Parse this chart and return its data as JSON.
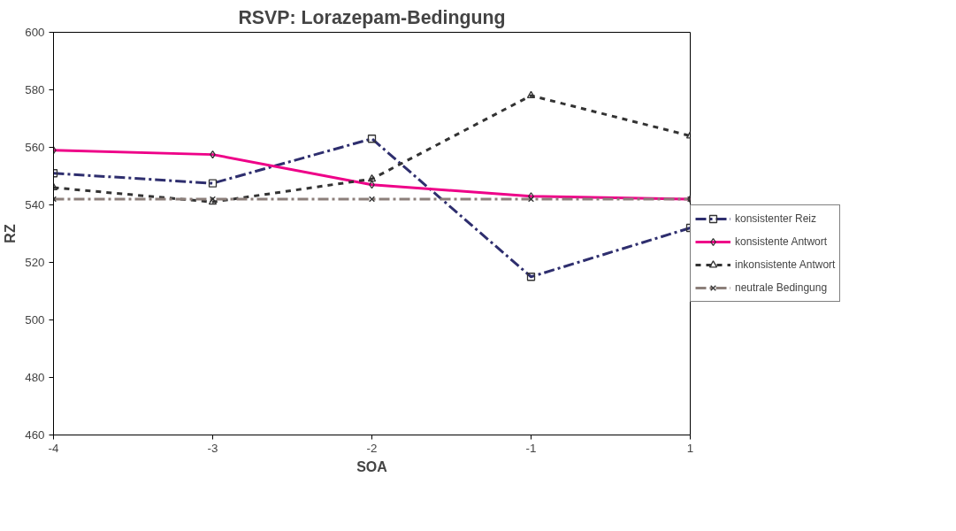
{
  "chart_data": {
    "type": "line",
    "title": "RSVP: Lorazepam-Bedingung",
    "xlabel": "SOA",
    "ylabel": "RZ",
    "categories": [
      "-4",
      "-3",
      "-2",
      "-1",
      "1"
    ],
    "ylim": [
      460,
      600
    ],
    "yticks": [
      460,
      480,
      500,
      520,
      540,
      560,
      580,
      600
    ],
    "grid": false,
    "legend": "right",
    "series": [
      {
        "name": "konsistenter Reiz",
        "color": "#2e2e6e",
        "marker": "square",
        "line_style": "dashed",
        "values": [
          551,
          547.5,
          563,
          515,
          532
        ]
      },
      {
        "name": "konsistente Antwort",
        "color": "#ee0088",
        "marker": "diamond",
        "line_style": "solid",
        "values": [
          559,
          557.5,
          547,
          543,
          542
        ]
      },
      {
        "name": "inkonsistente Antwort",
        "color": "#333333",
        "marker": "triangle",
        "line_style": "dotted",
        "values": [
          546,
          541,
          549,
          578,
          564
        ]
      },
      {
        "name": "neutrale Bedingung",
        "color": "#8c7f7a",
        "marker": "cross",
        "line_style": "dashed",
        "values": [
          542,
          542,
          542,
          542,
          542
        ]
      }
    ]
  }
}
